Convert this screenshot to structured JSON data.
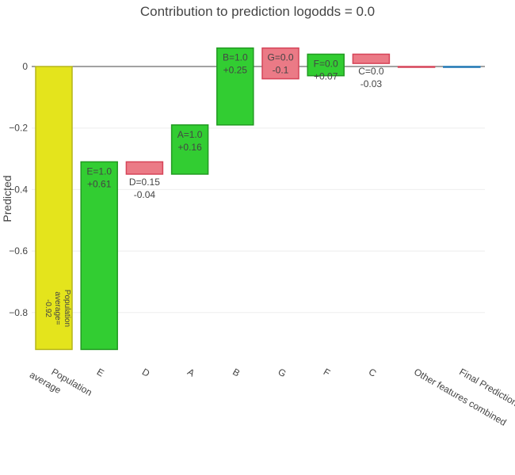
{
  "chart_data": {
    "type": "waterfall",
    "title": "Contribution to prediction logodds = 0.0",
    "ylabel": "Predicted",
    "ylim": [
      -0.92,
      0.06
    ],
    "yticks": [
      {
        "value": 0,
        "label": "0"
      },
      {
        "value": -0.2,
        "label": "−0.2"
      },
      {
        "value": -0.4,
        "label": "−0.4"
      },
      {
        "value": -0.6,
        "label": "−0.6"
      },
      {
        "value": -0.8,
        "label": "−0.8"
      }
    ],
    "grid": true,
    "colors": {
      "base": "#e4e41c",
      "base_line": "#b5b51a",
      "positive": "#32cd32",
      "positive_line": "#229a22",
      "negative": "#eb7a86",
      "negative_line": "#d64458",
      "final": "#1f77b4",
      "grid": "#eeeeee",
      "zero_line": "#444444"
    },
    "bars": [
      {
        "category": "Population average",
        "kind": "base",
        "start": 0,
        "end": -0.92,
        "label_lines": [
          "Population",
          "average=",
          "-0.92"
        ]
      },
      {
        "category": "E",
        "kind": "positive",
        "start": -0.92,
        "end": -0.31,
        "label_lines": [
          "E=1.0",
          "+0.61"
        ]
      },
      {
        "category": "D",
        "kind": "negative",
        "start": -0.31,
        "end": -0.35,
        "label_lines": [
          "D=0.15",
          "-0.04"
        ]
      },
      {
        "category": "A",
        "kind": "positive",
        "start": -0.35,
        "end": -0.19,
        "label_lines": [
          "A=1.0",
          "+0.16"
        ]
      },
      {
        "category": "B",
        "kind": "positive",
        "start": -0.19,
        "end": 0.06,
        "label_lines": [
          "B=1.0",
          "+0.25"
        ]
      },
      {
        "category": "G",
        "kind": "negative",
        "start": 0.06,
        "end": -0.04,
        "label_lines": [
          "G=0.0",
          "-0.1"
        ]
      },
      {
        "category": "F",
        "kind": "positive",
        "start": -0.03,
        "end": 0.04,
        "label_lines": [
          "F=0.0",
          "+0.07"
        ]
      },
      {
        "category": "C",
        "kind": "negative",
        "start": 0.04,
        "end": 0.01,
        "label_lines": [
          "C=0.0",
          "-0.03"
        ]
      },
      {
        "category": "Other features combined",
        "kind": "negative",
        "start": 0.0,
        "end": 0.0,
        "label_lines": []
      },
      {
        "category": "Final Prediction",
        "kind": "final",
        "start": 0.0,
        "end": 0.0,
        "label_lines": []
      }
    ]
  }
}
